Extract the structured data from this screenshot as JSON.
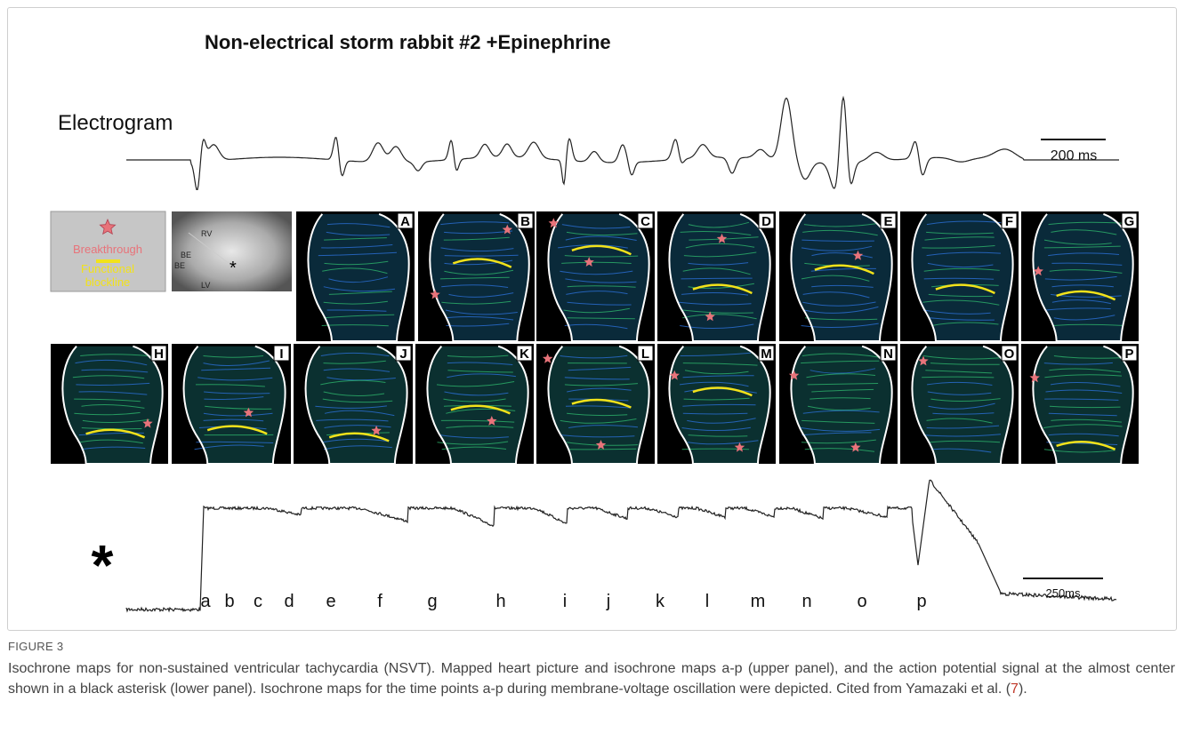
{
  "figure": {
    "title": "Non-electrical storm rabbit #2 +Epinephrine",
    "electrogram_label": "Electrogram",
    "scale_bar_top": "200 ms",
    "legend": {
      "breakthrough": "Breakthrough",
      "blockline_1": "Functional",
      "blockline_2": "blockline"
    },
    "heart_labels": [
      "RV",
      "BE",
      "BE",
      "LV",
      "*"
    ],
    "panels": [
      "A",
      "B",
      "C",
      "D",
      "E",
      "F",
      "G",
      "H",
      "I",
      "J",
      "K",
      "L",
      "M",
      "N",
      "O",
      "P"
    ],
    "asterisk": "*",
    "scale_bar_bottom": "250ms",
    "time_points": [
      "a",
      "b",
      "c",
      "d",
      "e",
      "f",
      "g",
      "h",
      "i",
      "j",
      "k",
      "l",
      "m",
      "n",
      "o",
      "p"
    ]
  },
  "caption": {
    "label": "FIGURE 3",
    "text": "Isochrone maps for non-sustained ventricular tachycardia (NSVT). Mapped heart picture and isochrone maps a-p (upper panel), and the action potential signal at the almost center shown in a black asterisk (lower panel). Isochrone maps for the time points a-p during membrane-voltage oscillation were depicted. Cited from Yamazaki et al. (",
    "citation": "7",
    "end": ")."
  }
}
